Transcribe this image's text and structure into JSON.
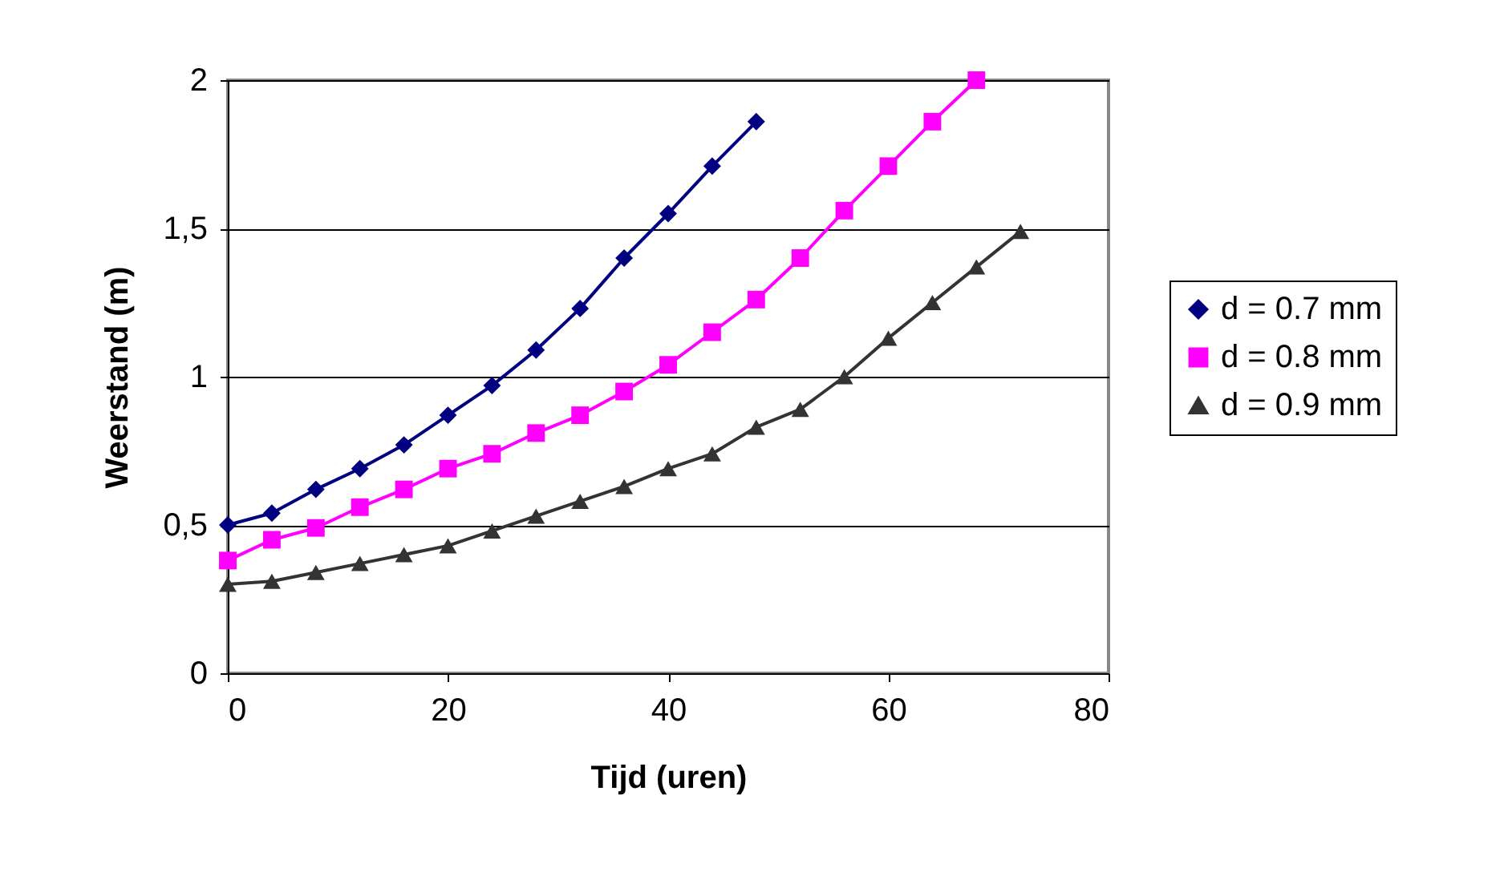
{
  "chart_data": {
    "type": "line",
    "xlabel": "Tijd (uren)",
    "ylabel": "Weerstand (m)",
    "xlim": [
      0,
      80
    ],
    "xticks": [
      0,
      20,
      40,
      60,
      80
    ],
    "ylim": [
      0,
      2
    ],
    "yticks": [
      0,
      {
        "value": 0.5,
        "label": "0,5"
      },
      1,
      {
        "value": 1.5,
        "label": "1,5"
      },
      2
    ],
    "grid": "y",
    "legend": "right",
    "line_style": "solid",
    "series": [
      {
        "name": "d = 0.7 mm",
        "color": "#000080",
        "marker": "diamond",
        "x": [
          0,
          4,
          8,
          12,
          16,
          20,
          24,
          28,
          32,
          36,
          40,
          44,
          48
        ],
        "values": [
          0.5,
          0.54,
          0.62,
          0.69,
          0.77,
          0.87,
          0.97,
          1.09,
          1.23,
          1.4,
          1.55,
          1.71,
          1.86
        ]
      },
      {
        "name": "d = 0.8 mm",
        "color": "#ff00ff",
        "marker": "square",
        "x": [
          0,
          4,
          8,
          12,
          16,
          20,
          24,
          28,
          32,
          36,
          40,
          44,
          48,
          52,
          56,
          60,
          64,
          68
        ],
        "values": [
          0.38,
          0.45,
          0.49,
          0.56,
          0.62,
          0.69,
          0.74,
          0.81,
          0.87,
          0.95,
          1.04,
          1.15,
          1.26,
          1.4,
          1.56,
          1.71,
          1.86,
          2.0
        ]
      },
      {
        "name": "d = 0.9 mm",
        "color": "#333333",
        "marker": "triangle",
        "x": [
          0,
          4,
          8,
          12,
          16,
          20,
          24,
          28,
          32,
          36,
          40,
          44,
          48,
          52,
          56,
          60,
          64,
          68,
          72
        ],
        "values": [
          0.3,
          0.31,
          0.34,
          0.37,
          0.4,
          0.43,
          0.48,
          0.53,
          0.58,
          0.63,
          0.69,
          0.74,
          0.83,
          0.89,
          1.0,
          1.13,
          1.25,
          1.37,
          1.49
        ]
      }
    ]
  }
}
